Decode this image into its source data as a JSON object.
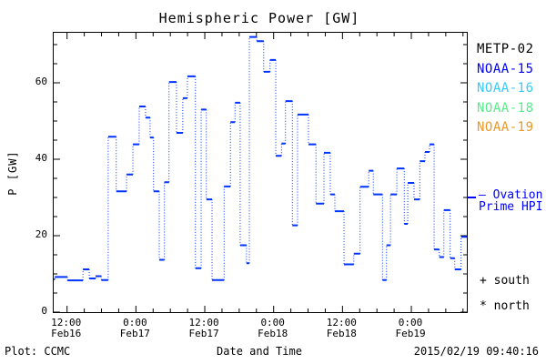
{
  "title": "Hemispheric Power [GW]",
  "axes": {
    "ylabel": "P [GW]",
    "xlabel": "Date and Time",
    "y_tick_labels": [
      "0",
      "20",
      "40",
      "60"
    ],
    "x_tick_labels": [
      {
        "time": "12:00",
        "date": "Feb16"
      },
      {
        "time": "0:00",
        "date": "Feb17"
      },
      {
        "time": "12:00",
        "date": "Feb17"
      },
      {
        "time": "0:00",
        "date": "Feb18"
      },
      {
        "time": "12:00",
        "date": "Feb18"
      },
      {
        "time": "0:00",
        "date": "Feb19"
      }
    ]
  },
  "legend": {
    "satellites": [
      {
        "label": "METP-02",
        "color": "#000000"
      },
      {
        "label": "NOAA-15",
        "color": "#0000ff"
      },
      {
        "label": "NOAA-16",
        "color": "#33ccff"
      },
      {
        "label": "NOAA-18",
        "color": "#55ee88"
      },
      {
        "label": "NOAA-19",
        "color": "#ee9922"
      }
    ],
    "ovation": {
      "line1": "— Ovation",
      "line2": "Prime HPI",
      "color": "#0000ff"
    },
    "markers": [
      {
        "symbol": "+",
        "label": "south"
      },
      {
        "symbol": "*",
        "label": "north"
      }
    ]
  },
  "footer": {
    "left": "Plot: CCMC",
    "right": "2015/02/19 09:40:16"
  },
  "chart_data": {
    "type": "line",
    "subtype": "step-post-dotted-risers",
    "title": "Hemispheric Power [GW]",
    "xlabel": "Date and Time",
    "ylabel": "P [GW]",
    "x_start": "2015-02-16 09:40",
    "x_end": "2015-02-19 09:40",
    "x_span_hours": 72,
    "ylim": [
      0,
      73.1
    ],
    "y_major_ticks": [
      0,
      20,
      40,
      60
    ],
    "y_minor_step": 5,
    "x_major_tick_hours": [
      2.33,
      14.33,
      26.33,
      38.33,
      50.33,
      62.33
    ],
    "x_minor_step_hours": 3,
    "grid": false,
    "legend_position": "right-outside",
    "line_color": "#0033ff",
    "steps_hours_value": [
      [
        0,
        8.6
      ],
      [
        0.2,
        9.2
      ],
      [
        2.4,
        8.3
      ],
      [
        5.1,
        11.2
      ],
      [
        6.2,
        8.8
      ],
      [
        7.3,
        9.4
      ],
      [
        8.3,
        8.4
      ],
      [
        9.5,
        45.9
      ],
      [
        10.9,
        31.6
      ],
      [
        12.7,
        36
      ],
      [
        13.8,
        43.9
      ],
      [
        14.9,
        53.8
      ],
      [
        16,
        50.9
      ],
      [
        16.8,
        45.7
      ],
      [
        17.4,
        31.6
      ],
      [
        18.4,
        13.7
      ],
      [
        19.3,
        34
      ],
      [
        20.1,
        60.2
      ],
      [
        21.4,
        46.9
      ],
      [
        22.5,
        56
      ],
      [
        23.3,
        61.7
      ],
      [
        24.7,
        11.5
      ],
      [
        25.7,
        53
      ],
      [
        26.6,
        29.5
      ],
      [
        27.6,
        8.4
      ],
      [
        29.7,
        32.9
      ],
      [
        30.8,
        49.7
      ],
      [
        31.6,
        54.8
      ],
      [
        32.5,
        17.5
      ],
      [
        33.6,
        12.8
      ],
      [
        34.1,
        72
      ],
      [
        35.4,
        70.9
      ],
      [
        36.6,
        62.9
      ],
      [
        37.7,
        66
      ],
      [
        38.7,
        40.9
      ],
      [
        39.7,
        44.1
      ],
      [
        40.4,
        55.2
      ],
      [
        41.6,
        22.7
      ],
      [
        42.5,
        51.7
      ],
      [
        44.4,
        43.9
      ],
      [
        45.7,
        28.4
      ],
      [
        47.1,
        41.7
      ],
      [
        48.2,
        30.8
      ],
      [
        49,
        26.4
      ],
      [
        50.6,
        12.5
      ],
      [
        52.3,
        15.3
      ],
      [
        53.4,
        32.8
      ],
      [
        54.9,
        37
      ],
      [
        55.7,
        30.8
      ],
      [
        57.3,
        8.4
      ],
      [
        58,
        17.5
      ],
      [
        58.7,
        30.8
      ],
      [
        59.8,
        37.6
      ],
      [
        61.1,
        23.1
      ],
      [
        61.7,
        33.8
      ],
      [
        62.8,
        29.5
      ],
      [
        63.8,
        39.5
      ],
      [
        64.7,
        41.9
      ],
      [
        65.5,
        43.9
      ],
      [
        66.3,
        16.4
      ],
      [
        67.2,
        14.4
      ],
      [
        68,
        26.7
      ],
      [
        69.1,
        14.1
      ],
      [
        69.9,
        11.2
      ],
      [
        71,
        19.7
      ]
    ]
  }
}
